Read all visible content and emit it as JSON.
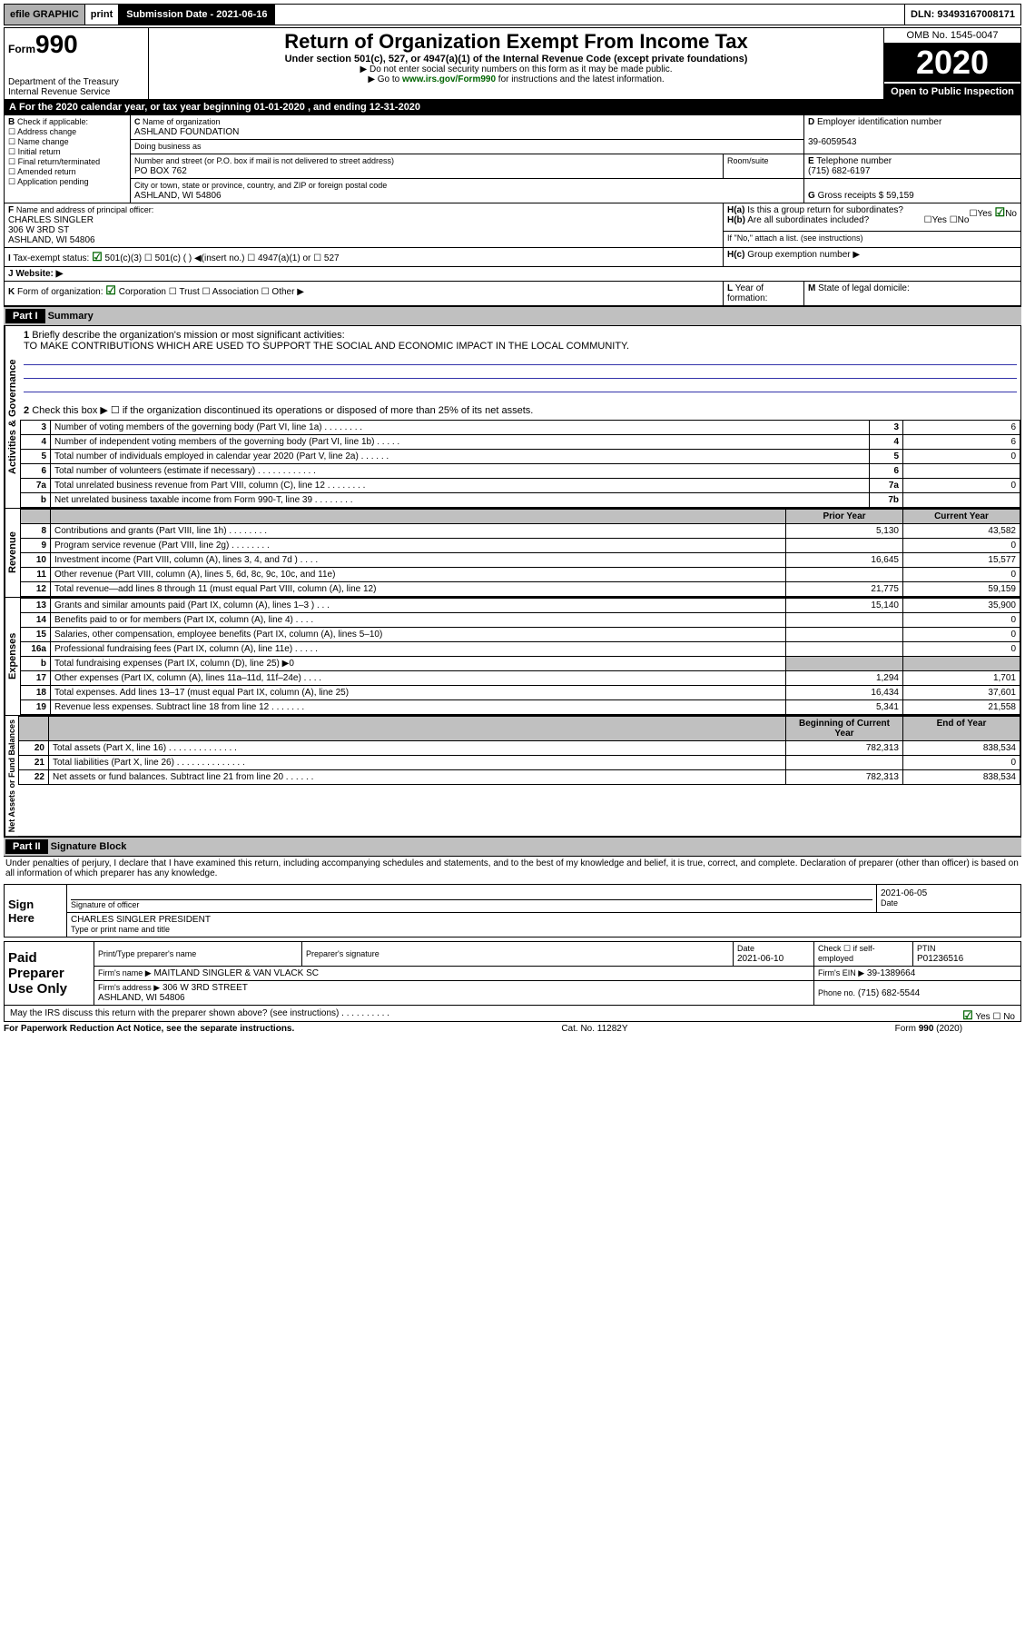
{
  "top": {
    "efile": "efile GRAPHIC",
    "print": "print",
    "submission": "Submission Date - 2021-06-16",
    "dln": "DLN: 93493167008171"
  },
  "header": {
    "form_label": "Form",
    "form_number": "990",
    "dept": "Department of the Treasury\nInternal Revenue Service",
    "title": "Return of Organization Exempt From Income Tax",
    "subtitle": "Under section 501(c), 527, or 4947(a)(1) of the Internal Revenue Code (except private foundations)",
    "instr1": "▶ Do not enter social security numbers on this form as it may be made public.",
    "instr2_pre": "▶ Go to ",
    "instr2_link": "www.irs.gov/Form990",
    "instr2_post": " for instructions and the latest information.",
    "omb": "OMB No. 1545-0047",
    "year": "2020",
    "open": "Open to Public Inspection"
  },
  "A": {
    "text": "For the 2020 calendar year, or tax year beginning 01-01-2020    , and ending 12-31-2020"
  },
  "B": {
    "label": "Check if applicable:",
    "items": [
      "Address change",
      "Name change",
      "Initial return",
      "Final return/terminated",
      "Amended return",
      "Application pending"
    ]
  },
  "C": {
    "name_label": "Name of organization",
    "name": "ASHLAND FOUNDATION",
    "dba_label": "Doing business as",
    "addr_label": "Number and street (or P.O. box if mail is not delivered to street address)",
    "addr": "PO BOX 762",
    "room_label": "Room/suite",
    "city_label": "City or town, state or province, country, and ZIP or foreign postal code",
    "city": "ASHLAND, WI  54806"
  },
  "D": {
    "label": "Employer identification number",
    "value": "39-6059543"
  },
  "E": {
    "label": "Telephone number",
    "value": "(715) 682-6197"
  },
  "G": {
    "label": "Gross receipts $",
    "value": "59,159"
  },
  "F": {
    "label": "Name and address of principal officer:",
    "name": "CHARLES SINGLER",
    "addr1": "306 W 3RD ST",
    "addr2": "ASHLAND, WI  54806"
  },
  "H": {
    "a": "Is this a group return for subordinates?",
    "b": "Are all subordinates included?",
    "b_note": "If \"No,\" attach a list. (see instructions)",
    "c": "Group exemption number ▶",
    "yes": "Yes",
    "no": "No"
  },
  "I": {
    "label": "Tax-exempt status:",
    "v501c3": "501(c)(3)",
    "v501c": "501(c) (   ) ◀(insert no.)",
    "v4947": "4947(a)(1) or",
    "v527": "527"
  },
  "J": {
    "label": "Website: ▶"
  },
  "K": {
    "label": "Form of organization:",
    "corp": "Corporation",
    "trust": "Trust",
    "assoc": "Association",
    "other": "Other ▶"
  },
  "L": {
    "label": "Year of formation:"
  },
  "M": {
    "label": "State of legal domicile:"
  },
  "part1": {
    "header": "Part I",
    "title": "Summary",
    "l1": "Briefly describe the organization's mission or most significant activities:",
    "mission": "TO MAKE CONTRIBUTIONS WHICH ARE USED TO SUPPORT THE SOCIAL AND ECONOMIC IMPACT IN THE LOCAL COMMUNITY.",
    "l2": "Check this box ▶ ☐  if the organization discontinued its operations or disposed of more than 25% of its net assets.",
    "rows": [
      {
        "n": "3",
        "t": "Number of voting members of the governing body (Part VI, line 1a)   .    .    .    .    .    .    .    .",
        "b": "3",
        "v": "6"
      },
      {
        "n": "4",
        "t": "Number of independent voting members of the governing body (Part VI, line 1b)   .    .    .    .    .",
        "b": "4",
        "v": "6"
      },
      {
        "n": "5",
        "t": "Total number of individuals employed in calendar year 2020 (Part V, line 2a)   .    .    .    .    .    .",
        "b": "5",
        "v": "0"
      },
      {
        "n": "6",
        "t": "Total number of volunteers (estimate if necessary)   .    .    .    .    .    .    .    .    .    .    .    .",
        "b": "6",
        "v": ""
      },
      {
        "n": "7a",
        "t": "Total unrelated business revenue from Part VIII, column (C), line 12   .    .    .    .    .    .    .    .",
        "b": "7a",
        "v": "0"
      },
      {
        "n": "b",
        "t": "Net unrelated business taxable income from Form 990-T, line 39   .    .    .    .    .    .    .    .",
        "b": "7b",
        "v": ""
      }
    ],
    "prior": "Prior Year",
    "current": "Current Year",
    "revenue": [
      {
        "n": "8",
        "t": "Contributions and grants (Part VIII, line 1h)   .    .    .    .    .    .    .    .",
        "p": "5,130",
        "c": "43,582"
      },
      {
        "n": "9",
        "t": "Program service revenue (Part VIII, line 2g)   .    .    .    .    .    .    .    .",
        "p": "",
        "c": "0"
      },
      {
        "n": "10",
        "t": "Investment income (Part VIII, column (A), lines 3, 4, and 7d )   .    .    .    .",
        "p": "16,645",
        "c": "15,577"
      },
      {
        "n": "11",
        "t": "Other revenue (Part VIII, column (A), lines 5, 6d, 8c, 9c, 10c, and 11e)",
        "p": "",
        "c": "0"
      },
      {
        "n": "12",
        "t": "Total revenue—add lines 8 through 11 (must equal Part VIII, column (A), line 12)",
        "p": "21,775",
        "c": "59,159"
      }
    ],
    "expenses": [
      {
        "n": "13",
        "t": "Grants and similar amounts paid (Part IX, column (A), lines 1–3 )   .    .    .",
        "p": "15,140",
        "c": "35,900"
      },
      {
        "n": "14",
        "t": "Benefits paid to or for members (Part IX, column (A), line 4)   .    .    .    .",
        "p": "",
        "c": "0"
      },
      {
        "n": "15",
        "t": "Salaries, other compensation, employee benefits (Part IX, column (A), lines 5–10)",
        "p": "",
        "c": "0"
      },
      {
        "n": "16a",
        "t": "Professional fundraising fees (Part IX, column (A), line 11e)   .    .    .    .    .",
        "p": "",
        "c": "0"
      },
      {
        "n": "b",
        "t": "Total fundraising expenses (Part IX, column (D), line 25) ▶0",
        "p": "gray",
        "c": "gray"
      },
      {
        "n": "17",
        "t": "Other expenses (Part IX, column (A), lines 11a–11d, 11f–24e)   .    .    .    .",
        "p": "1,294",
        "c": "1,701"
      },
      {
        "n": "18",
        "t": "Total expenses. Add lines 13–17 (must equal Part IX, column (A), line 25)",
        "p": "16,434",
        "c": "37,601"
      },
      {
        "n": "19",
        "t": "Revenue less expenses. Subtract line 18 from line 12   .    .    .    .    .    .    .",
        "p": "5,341",
        "c": "21,558"
      }
    ],
    "bcy": "Beginning of Current Year",
    "eoy": "End of Year",
    "netassets": [
      {
        "n": "20",
        "t": "Total assets (Part X, line 16)   .    .    .    .    .    .    .    .    .    .    .    .    .    .",
        "p": "782,313",
        "c": "838,534"
      },
      {
        "n": "21",
        "t": "Total liabilities (Part X, line 26)   .    .    .    .    .    .    .    .    .    .    .    .    .    .",
        "p": "",
        "c": "0"
      },
      {
        "n": "22",
        "t": "Net assets or fund balances. Subtract line 21 from line 20   .    .    .    .    .    .",
        "p": "782,313",
        "c": "838,534"
      }
    ],
    "vert_activities": "Activities & Governance",
    "vert_revenue": "Revenue",
    "vert_expenses": "Expenses",
    "vert_net": "Net Assets or Fund Balances"
  },
  "part2": {
    "header": "Part II",
    "title": "Signature Block",
    "perjury": "Under penalties of perjury, I declare that I have examined this return, including accompanying schedules and statements, and to the best of my knowledge and belief, it is true, correct, and complete. Declaration of preparer (other than officer) is based on all information of which preparer has any knowledge.",
    "sign_here": "Sign Here",
    "sig_officer": "Signature of officer",
    "date": "Date",
    "date_val": "2021-06-05",
    "officer_name": "CHARLES SINGLER  PRESIDENT",
    "type_name": "Type or print name and title",
    "paid": "Paid Preparer Use Only",
    "prep_name_label": "Print/Type preparer's name",
    "prep_sig_label": "Preparer's signature",
    "prep_date": "2021-06-10",
    "check_self": "Check ☐ if self-employed",
    "ptin_label": "PTIN",
    "ptin": "P01236516",
    "firm_name_label": "Firm's name      ▶",
    "firm_name": "MAITLAND SINGLER & VAN VLACK SC",
    "firm_ein_label": "Firm's EIN ▶",
    "firm_ein": "39-1389664",
    "firm_addr_label": "Firm's address ▶",
    "firm_addr": "306 W 3RD STREET\nASHLAND, WI  54806",
    "phone_label": "Phone no.",
    "phone": "(715) 682-5544",
    "discuss": "May the IRS discuss this return with the preparer shown above? (see instructions)   .    .    .    .    .    .    .    .    .    .",
    "paperwork": "For Paperwork Reduction Act Notice, see the separate instructions.",
    "cat": "Cat. No. 11282Y",
    "formver": "Form 990 (2020)"
  }
}
